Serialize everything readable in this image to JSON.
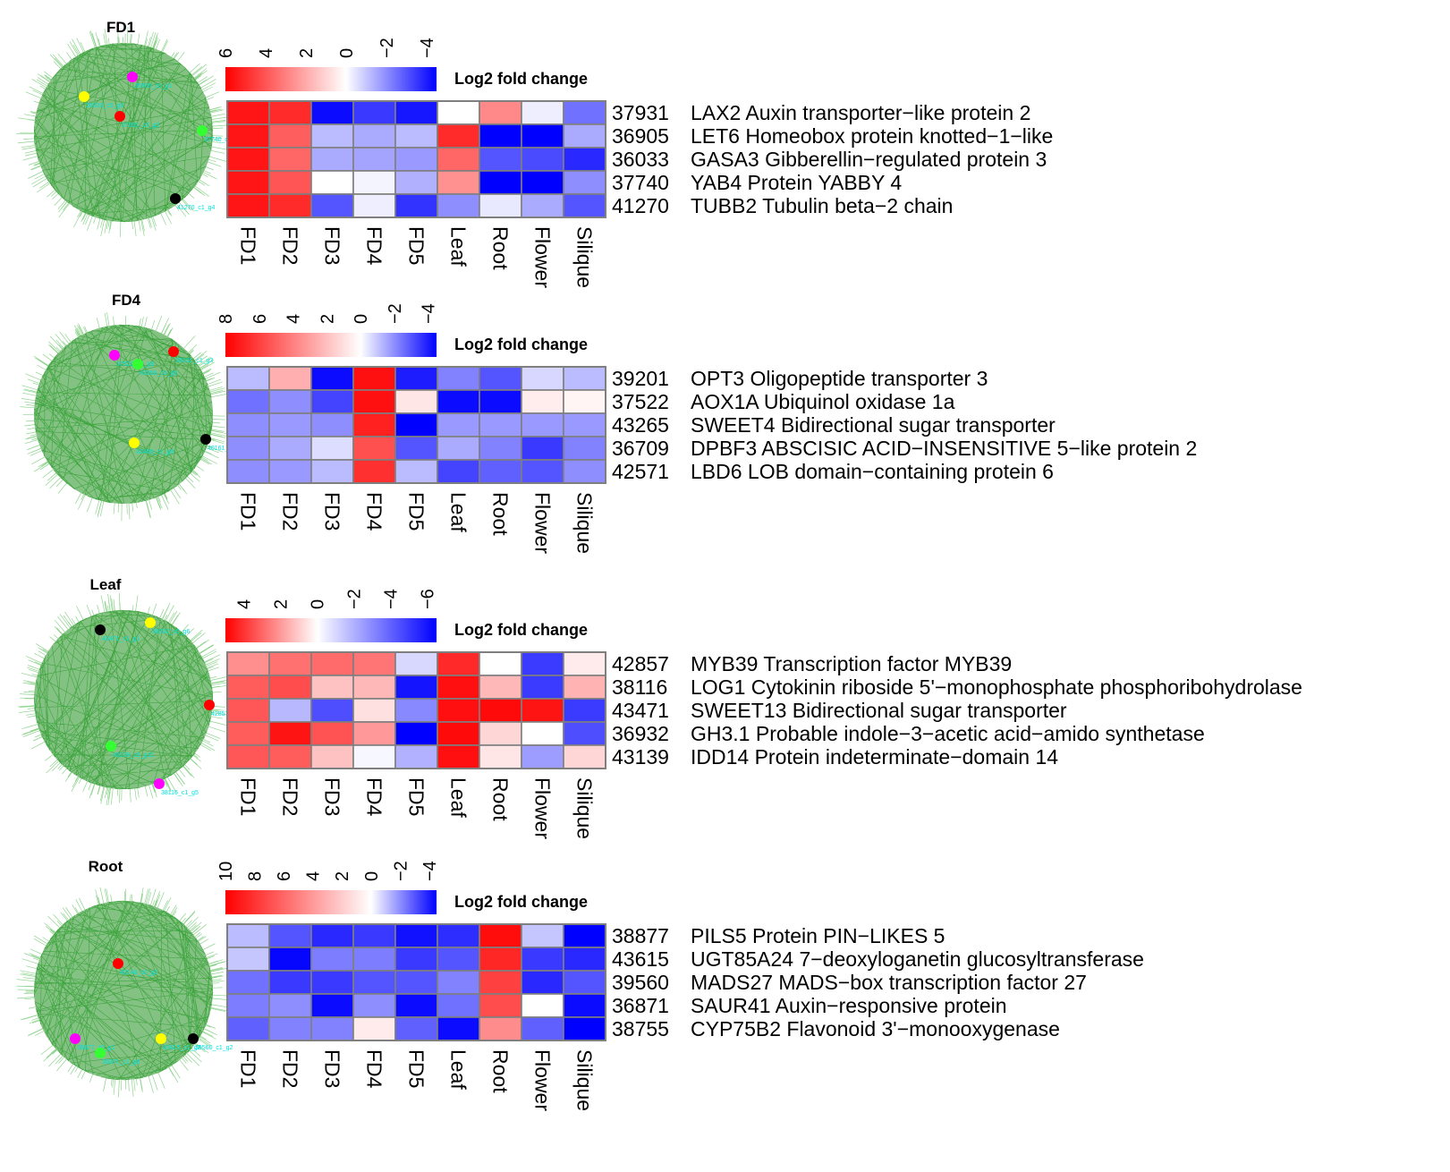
{
  "colors": {
    "high": "#ff0000",
    "mid": "#ffffff",
    "low": "#0000ff",
    "network_edge": "#2e9e2e",
    "network_node_label": "#00e0e0",
    "cell_border": "#7f7f7f"
  },
  "chart_data": [
    {
      "type": "heatmap",
      "title": "FD1",
      "legend_title": "Log2 fold change",
      "legend_ticks": [
        "6",
        "4",
        "2",
        "0",
        "−2",
        "−4"
      ],
      "scale_range": [
        6,
        -4.5
      ],
      "columns": [
        "FD1",
        "FD2",
        "FD3",
        "FD4",
        "FD5",
        "Leaf",
        "Root",
        "Flower",
        "Silique"
      ],
      "rows": [
        {
          "id": "37931",
          "label": "LAX2  Auxin transporter−like protein 2",
          "values": [
            5.5,
            5.0,
            -4.3,
            -3.5,
            -4.1,
            0.0,
            2.8,
            -0.3,
            -2.5
          ]
        },
        {
          "id": "36905",
          "label": "LET6  Homeobox protein knotted−1−like",
          "values": [
            5.5,
            3.8,
            -1.2,
            -1.5,
            -1.2,
            5.0,
            -4.5,
            -4.5,
            -1.5
          ]
        },
        {
          "id": "36033",
          "label": "GASA3  Gibberellin−regulated protein 3",
          "values": [
            5.5,
            3.6,
            -1.5,
            -1.6,
            -1.8,
            3.6,
            -3.0,
            -3.2,
            -3.8
          ]
        },
        {
          "id": "37740",
          "label": "YAB4  Protein YABBY 4",
          "values": [
            5.5,
            4.0,
            0.0,
            -0.2,
            -1.4,
            2.6,
            -4.5,
            -4.5,
            -2.0
          ]
        },
        {
          "id": "41270",
          "label": "TUBB2  Tubulin beta−2 chain",
          "values": [
            5.5,
            5.0,
            -3.0,
            -0.3,
            -3.6,
            -2.0,
            -0.4,
            -1.5,
            -3.0
          ]
        }
      ],
      "network": {
        "nodes": [
          {
            "label": "36905_c0_g1",
            "color": "#ff00ff"
          },
          {
            "label": "36033_c5_g5",
            "color": "#ffff00"
          },
          {
            "label": "37931_c2_g2",
            "color": "#ff0000"
          },
          {
            "label": "37740_c0_g5",
            "color": "#33ff33"
          },
          {
            "label": "41270_c1_g4",
            "color": "#000000"
          }
        ]
      }
    },
    {
      "type": "heatmap",
      "title": "FD4",
      "legend_title": "Log2 fold change",
      "legend_ticks": [
        "8",
        "6",
        "4",
        "2",
        "0",
        "−2",
        "−4"
      ],
      "scale_range": [
        8,
        -4.5
      ],
      "columns": [
        "FD1",
        "FD2",
        "FD3",
        "FD4",
        "FD5",
        "Leaf",
        "Root",
        "Flower",
        "Silique"
      ],
      "rows": [
        {
          "id": "39201",
          "label": "OPT3  Oligopeptide transporter 3",
          "values": [
            -1.2,
            2.5,
            -4.3,
            7.5,
            -4.0,
            -2.2,
            -3.0,
            -0.7,
            -1.2
          ]
        },
        {
          "id": "37522",
          "label": "AOX1A  Ubiquinol oxidase 1a",
          "values": [
            -2.5,
            -2.0,
            -3.3,
            7.5,
            0.8,
            -4.3,
            -4.3,
            0.6,
            0.3
          ]
        },
        {
          "id": "43265",
          "label": "SWEET4  Bidirectional sugar transporter",
          "values": [
            -2.0,
            -1.8,
            -2.0,
            7.0,
            -4.5,
            -1.8,
            -1.8,
            -1.8,
            -1.8
          ]
        },
        {
          "id": "36709",
          "label": "DPBF3  ABSCISIC ACID−INSENSITIVE 5−like protein 2",
          "values": [
            -2.0,
            -1.5,
            -0.6,
            5.5,
            -3.0,
            -1.5,
            -2.2,
            -3.5,
            -2.2
          ]
        },
        {
          "id": "42571",
          "label": "LBD6  LOB domain−containing protein 6",
          "values": [
            -2.0,
            -1.8,
            -1.2,
            6.5,
            -1.2,
            -3.3,
            -2.8,
            -3.0,
            -2.0
          ]
        }
      ],
      "network": {
        "nodes": [
          {
            "label": "37522_c2_g9",
            "color": "#ff00ff"
          },
          {
            "label": "43265_c3_g5",
            "color": "#33ff33"
          },
          {
            "label": "39201_c1_g3",
            "color": "#ff0000"
          },
          {
            "label": "42406_c1_g8",
            "color": "#ffff00"
          },
          {
            "label": "40161_c6_g5",
            "color": "#000000"
          }
        ]
      }
    },
    {
      "type": "heatmap",
      "title": "Leaf",
      "legend_title": "Log2 fold change",
      "legend_ticks": [
        "4",
        "2",
        "0",
        "−2",
        "−4",
        "−6"
      ],
      "scale_range": [
        5,
        -6.5
      ],
      "columns": [
        "FD1",
        "FD2",
        "FD3",
        "FD4",
        "FD5",
        "Leaf",
        "Root",
        "Flower",
        "Silique"
      ],
      "rows": [
        {
          "id": "42857",
          "label": "MYB39  Transcription factor MYB39",
          "values": [
            2.2,
            2.8,
            2.9,
            2.7,
            -1.0,
            4.2,
            0.0,
            -5.0,
            0.4
          ]
        },
        {
          "id": "38116",
          "label": "LOG1  Cytokinin riboside 5'−monophosphate phosphoribohydrolase",
          "values": [
            3.2,
            3.5,
            1.2,
            1.4,
            -6.0,
            4.7,
            1.4,
            -5.0,
            1.5
          ]
        },
        {
          "id": "43471",
          "label": "SWEET13  Bidirectional sugar transporter",
          "values": [
            3.3,
            -1.8,
            -4.5,
            0.6,
            -3.0,
            4.7,
            4.8,
            4.6,
            -5.0
          ]
        },
        {
          "id": "36932",
          "label": "GH3.1  Probable indole−3−acetic acid−amido synthetase",
          "values": [
            3.2,
            4.6,
            3.4,
            2.0,
            -6.5,
            4.8,
            0.8,
            0.0,
            -4.5
          ]
        },
        {
          "id": "43139",
          "label": "IDD14  Protein indeterminate−domain 14",
          "values": [
            3.3,
            3.2,
            1.2,
            -0.2,
            -2.0,
            4.7,
            0.5,
            -2.5,
            0.8
          ]
        }
      ],
      "network": {
        "nodes": [
          {
            "label": "43471_c1_g1",
            "color": "#000000"
          },
          {
            "label": "36932_c0_g6",
            "color": "#ffff00"
          },
          {
            "label": "42857_c1_g2",
            "color": "#ff0000"
          },
          {
            "label": "43139_c3_g11",
            "color": "#33ff33"
          },
          {
            "label": "38116_c1_g5",
            "color": "#ff00ff"
          }
        ]
      }
    },
    {
      "type": "heatmap",
      "title": "Root",
      "legend_title": "Log2 fold change",
      "legend_ticks": [
        "10",
        "8",
        "6",
        "4",
        "2",
        "0",
        "−2",
        "−4"
      ],
      "scale_range": [
        10,
        -4.5
      ],
      "columns": [
        "FD1",
        "FD2",
        "FD3",
        "FD4",
        "FD5",
        "Leaf",
        "Root",
        "Flower",
        "Silique"
      ],
      "rows": [
        {
          "id": "38877",
          "label": "PILS5  Protein PIN−LIKES 5",
          "values": [
            -1.2,
            -3.0,
            -3.8,
            -3.5,
            -4.2,
            -3.7,
            9.5,
            -1.0,
            -4.5
          ]
        },
        {
          "id": "43615",
          "label": "UGT85A24  7−deoxyloganetin glucosyltransferase",
          "values": [
            -1.0,
            -4.4,
            -2.3,
            -2.3,
            -3.5,
            -3.0,
            8.5,
            -3.5,
            -3.8
          ]
        },
        {
          "id": "39560",
          "label": "MADS27  MADS−box transcription factor 27",
          "values": [
            -2.5,
            -3.5,
            -3.5,
            -3.0,
            -3.0,
            -2.2,
            7.5,
            -3.8,
            -3.0
          ]
        },
        {
          "id": "36871",
          "label": "SAUR41  Auxin−responsive protein",
          "values": [
            -2.3,
            -2.0,
            -4.3,
            -2.0,
            -4.3,
            -2.5,
            7.0,
            0.0,
            -4.3
          ]
        },
        {
          "id": "38755",
          "label": "CYP75B2  Flavonoid 3'−monooxygenase",
          "values": [
            -2.8,
            -2.2,
            -2.2,
            0.8,
            -2.8,
            -4.3,
            4.5,
            -2.8,
            -4.5
          ]
        }
      ],
      "network": {
        "nodes": [
          {
            "label": "42148_c0_g2",
            "color": "#ff0000"
          },
          {
            "label": "38877_c0_g1",
            "color": "#ff00ff"
          },
          {
            "label": "36871_c1_g8",
            "color": "#33ff33"
          },
          {
            "label": "43615_c1_g2",
            "color": "#ffff00"
          },
          {
            "label": "39560_c1_g2",
            "color": "#000000"
          }
        ]
      }
    }
  ]
}
